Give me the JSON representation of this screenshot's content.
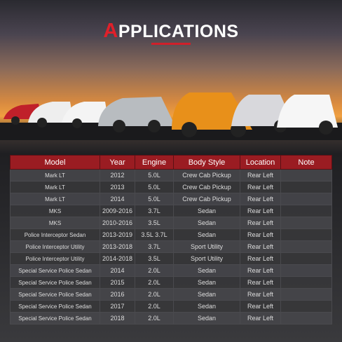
{
  "header": {
    "title": "APPLICATIONS"
  },
  "table": {
    "columns": [
      "Model",
      "Year",
      "Engine",
      "Body Style",
      "Location",
      "Note"
    ],
    "rows": [
      [
        "Mark LT",
        "2012",
        "5.0L",
        "Crew Cab Pickup",
        "Rear Left"
      ],
      [
        "Mark LT",
        "2013",
        "5.0L",
        "Crew Cab Pickup",
        "Rear Left"
      ],
      [
        "Mark LT",
        "2014",
        "5.0L",
        "Crew Cab Pickup",
        "Rear Left"
      ],
      [
        "MKS",
        "2009-2016",
        "3.7L",
        "Sedan",
        "Rear Left"
      ],
      [
        "MKS",
        "2010-2016",
        "3.5L",
        "Sedan",
        "Rear Left"
      ],
      [
        "Police Interceptor Sedan",
        "2013-2019",
        "3.5L 3.7L",
        "Sedan",
        "Rear Left"
      ],
      [
        "Police Interceptor Utility",
        "2013-2018",
        "3.7L",
        "Sport Utility",
        "Rear Left"
      ],
      [
        "Police Interceptor Utility",
        "2014-2018",
        "3.5L",
        "Sport Utility",
        "Rear Left"
      ],
      [
        "Special Service Police Sedan",
        "2014",
        "2.0L",
        "Sedan",
        "Rear Left"
      ],
      [
        "Special Service Police Sedan",
        "2015",
        "2.0L",
        "Sedan",
        "Rear Left"
      ],
      [
        "Special Service Police Sedan",
        "2016",
        "2.0L",
        "Sedan",
        "Rear Left"
      ],
      [
        "Special Service Police Sedan",
        "2017",
        "2.0L",
        "Sedan",
        "Rear Left"
      ],
      [
        "Special Service Police Sedan",
        "2018",
        "2.0L",
        "Sedan",
        "Rear Left"
      ]
    ]
  }
}
